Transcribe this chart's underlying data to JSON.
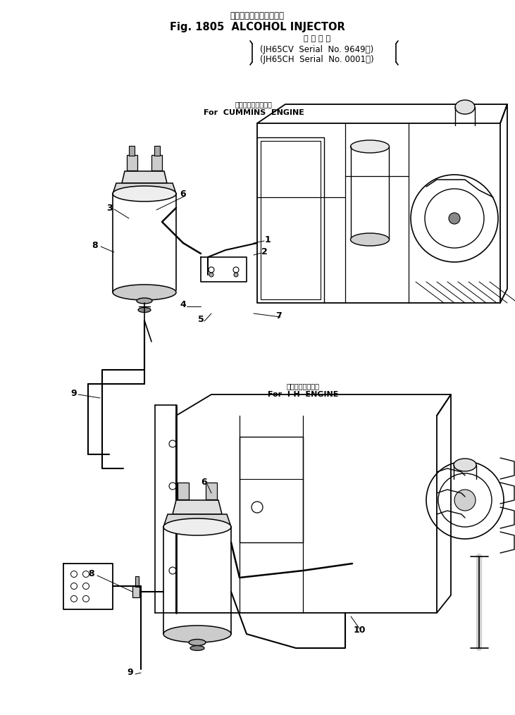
{
  "title_jp": "アルコールインジェクタ",
  "title_en": "Fig. 1805  ALCOHOL INJECTOR",
  "serial_label": "適 用 号 機",
  "serial_line1": "(JH65CV  Serial  No. 9649～)",
  "serial_line2": "(JH65CH  Serial  No. 0001～)",
  "label_cummins_jp": "カミンズエンジン用",
  "label_cummins_en": "For  CUMMINS  ENGINE",
  "label_ih_jp": "インタエンジン用",
  "label_ih_en": "For  I-H  ENGINE",
  "bg_color": "#ffffff",
  "text_color": "#000000",
  "figsize": [
    7.31,
    10.15
  ],
  "dpi": 100
}
